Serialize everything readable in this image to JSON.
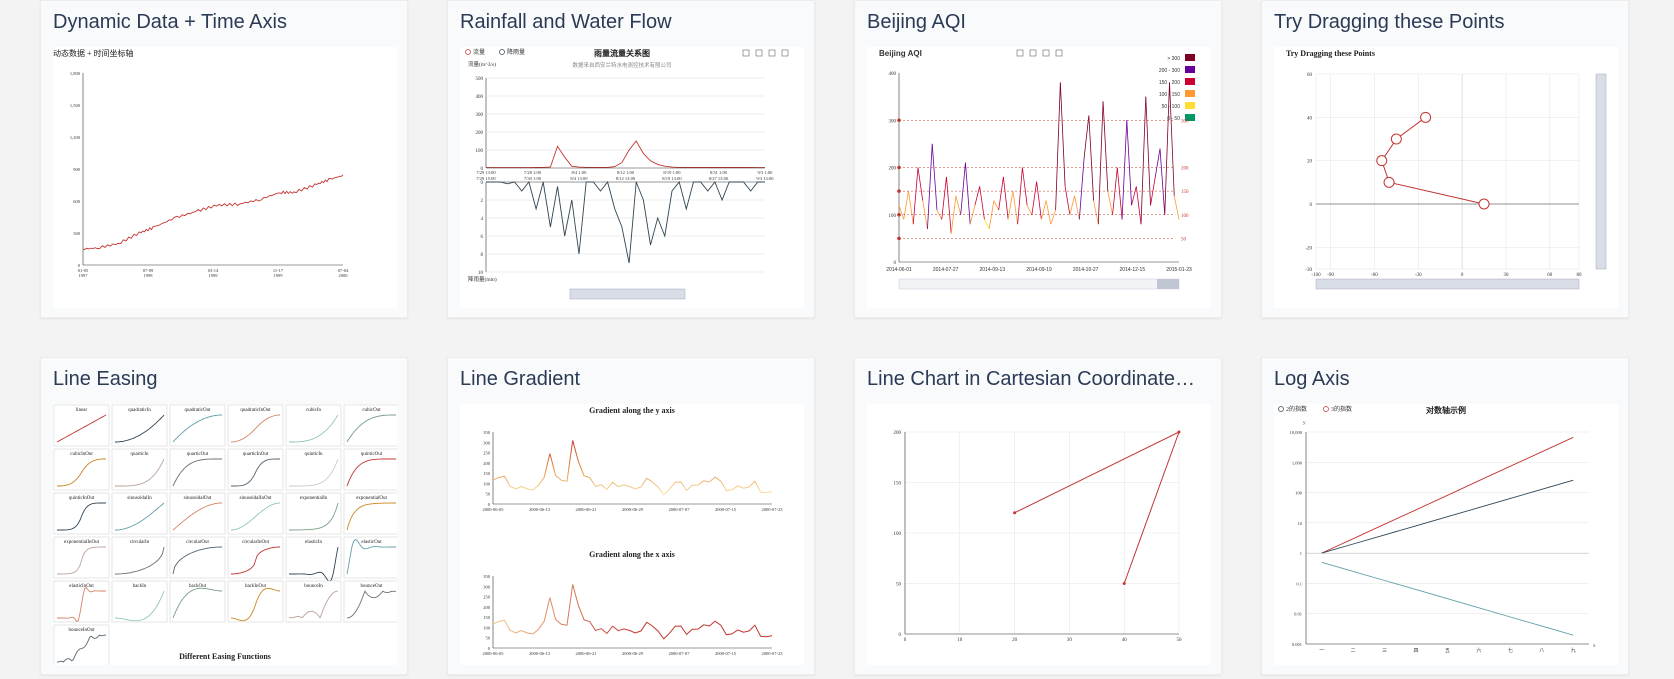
{
  "cards": [
    {
      "title": "Dynamic Data + Time Axis",
      "inner_title": "动态数据 + 时间坐标轴",
      "chart_data": {
        "type": "line",
        "series": [
          {
            "values": [
              [
                1997,
                150
              ],
              [
                1997.2,
                160
              ],
              [
                1997.5,
                200
              ],
              [
                1997.8,
                300
              ],
              [
                1998.0,
                350
              ],
              [
                1998.3,
                440
              ],
              [
                1998.6,
                500
              ],
              [
                1998.9,
                560
              ],
              [
                1999.2,
                570
              ],
              [
                1999.5,
                610
              ],
              [
                1999.8,
                680
              ],
              [
                2000.0,
                680
              ],
              [
                2000.3,
                750
              ],
              [
                2000.5,
                800
              ],
              [
                2000.7,
                840
              ]
            ]
          }
        ],
        "x_ticks": [
          "01-05\n1997",
          "07-09\n1998",
          "03-14\n1999",
          "11-17\n1999",
          "07-04\n2000"
        ],
        "y_ticks": [
          "0",
          "300",
          "600",
          "900",
          "1,200",
          "1,500",
          "1,800"
        ],
        "ylim": [
          0,
          1800
        ]
      }
    },
    {
      "title": "Rainfall and Water Flow",
      "inner_title": "雨量流量关系图",
      "inner_subtitle": "数据来自西安兰特水电测控技术有限公司",
      "legend": [
        "流量",
        "降雨量"
      ],
      "chart_data": {
        "type": "line",
        "series": [
          {
            "name": "流量",
            "values": [
              2,
              2,
              2,
              2,
              2,
              2,
              2,
              3,
              3,
              5,
              120,
              60,
              10,
              5,
              3,
              3,
              3,
              3,
              8,
              30,
              100,
              150,
              80,
              40,
              20,
              10,
              5,
              3,
              3,
              3,
              3,
              3,
              3,
              3,
              3,
              3,
              3,
              3,
              2,
              2
            ]
          },
          {
            "name": "降雨量",
            "values": [
              0,
              0,
              0,
              0.2,
              0,
              1,
              0,
              3,
              0,
              5,
              0.5,
              6,
              2,
              8,
              0,
              0,
              1,
              0,
              3,
              5,
              9,
              0,
              2,
              7,
              4,
              6,
              1,
              0,
              3,
              0,
              0,
              1,
              0,
              2,
              0,
              0,
              0,
              1,
              0,
              0
            ]
          }
        ],
        "y_ticks_top": [
          "0",
          "100",
          "200",
          "300",
          "400",
          "500"
        ],
        "ylim_top": [
          0,
          500
        ],
        "y_ticks_bottom": [
          "0",
          "2",
          "4",
          "6",
          "8",
          "10"
        ],
        "ylim_bottom": [
          0,
          10
        ],
        "x_ticks": [
          "7/29 13:00\n7/29 15:00",
          "7/28 1:00\n7/30 1:00",
          "8/4 1:00\n8/4 13:00",
          "8/12 1:00\n8/12 13:00",
          "8/19 1:00\n8/19 13:00",
          "8/31 1:00\n8/27 13:00",
          "9/3 1:00\n9/3 13:00"
        ],
        "ylabel_top": "流量(m^3/s)",
        "ylabel_bottom": "降雨量(mm)"
      }
    },
    {
      "title": "Beijing AQI",
      "inner_title": "Beijing AQI",
      "visual_map": [
        "> 300",
        "200 - 300",
        "150 - 200",
        "100 - 150",
        "50 - 100",
        "0 - 50"
      ],
      "visual_colors": [
        "#7e0023",
        "#660099",
        "#cc0033",
        "#ff9933",
        "#ffde33",
        "#096"
      ],
      "chart_data": {
        "type": "line",
        "ylim": [
          0,
          400
        ],
        "y_ticks": [
          "0",
          "100",
          "200",
          "300",
          "400"
        ],
        "x_ticks": [
          "2014-06-01",
          "2014-07-27",
          "2014-09-13",
          "2014-09-19",
          "2014-10-27",
          "2014-12-15",
          "2015-01-23"
        ],
        "mark_lines": [
          "50",
          "100",
          "150",
          "200",
          "300"
        ],
        "values": [
          120,
          90,
          150,
          80,
          200,
          130,
          70,
          250,
          110,
          90,
          180,
          60,
          140,
          100,
          210,
          80,
          120,
          160,
          90,
          70,
          130,
          110,
          180,
          90,
          150,
          80,
          200,
          120,
          100,
          170,
          90,
          130,
          80,
          110,
          380,
          160,
          100,
          140,
          90,
          220,
          310,
          130,
          80,
          340,
          150,
          100,
          200,
          90,
          300,
          120,
          160,
          80,
          350,
          120,
          180,
          240,
          100,
          380,
          140,
          90
        ]
      }
    },
    {
      "title": "Try Dragging these Points",
      "inner_title": "Try Dragging these Points",
      "chart_data": {
        "type": "line",
        "xlim": [
          -100,
          80
        ],
        "ylim": [
          -30,
          60
        ],
        "x_ticks": [
          "-100",
          "-90",
          "-60",
          "-30",
          "0",
          "30",
          "60",
          "80"
        ],
        "y_ticks": [
          "-30",
          "-20",
          "0",
          "20",
          "40",
          "60"
        ],
        "values": [
          [
            15,
            0
          ],
          [
            -50,
            10
          ],
          [
            -55,
            20
          ],
          [
            -45,
            30
          ],
          [
            -25,
            40
          ]
        ]
      }
    },
    {
      "title": "Line Easing",
      "inner_title": "Different Easing Functions",
      "easings": [
        "linear",
        "quadraticIn",
        "quadraticOut",
        "quadraticInOut",
        "cubicIn",
        "cubicOut",
        "cubicInOut",
        "quarticIn",
        "quarticOut",
        "quarticInOut",
        "quinticIn",
        "quinticOut",
        "quinticInOut",
        "sinusoidalIn",
        "sinusoidalOut",
        "sinusoidalInOut",
        "exponentialIn",
        "exponentialOut",
        "exponentialInOut",
        "circularIn",
        "circularOut",
        "circularInOut",
        "elasticIn",
        "elasticOut",
        "elasticInOut",
        "backIn",
        "backOut",
        "backInOut",
        "bounceIn",
        "bounceOut",
        "bounceInOut"
      ],
      "easing_colors": [
        "#c23531",
        "#2f4554",
        "#61a0a8",
        "#d48265",
        "#91c7ae",
        "#749f83",
        "#ca8622",
        "#bda29a",
        "#6e7074",
        "#546570",
        "#c4ccd3",
        "#c23531",
        "#2f4554",
        "#61a0a8",
        "#d48265",
        "#91c7ae",
        "#749f83",
        "#ca8622",
        "#bda29a",
        "#6e7074",
        "#546570",
        "#c23531",
        "#2f4554",
        "#61a0a8",
        "#d48265",
        "#91c7ae",
        "#749f83",
        "#ca8622",
        "#bda29a",
        "#6e7074",
        "#546570"
      ]
    },
    {
      "title": "Line Gradient",
      "inner_title_1": "Gradient along the y axis",
      "inner_title_2": "Gradient along the x axis",
      "chart_data": {
        "type": "line",
        "ylim": [
          0,
          350
        ],
        "y_ticks": [
          "0",
          "50",
          "100",
          "150",
          "200",
          "250",
          "300",
          "350"
        ],
        "x_ticks": [
          "2000-06-05",
          "2000-06-13",
          "2000-06-21",
          "2000-06-29",
          "2000-07-07",
          "2000-07-15",
          "2000-07-23"
        ],
        "values": [
          116,
          129,
          135,
          86,
          73,
          85,
          73,
          68,
          92,
          130,
          245,
          139,
          115,
          111,
          309,
          206,
          137,
          128,
          85,
          94,
          71,
          106,
          84,
          93,
          85,
          73,
          83,
          125,
          107,
          82,
          44,
          72,
          106,
          107,
          66,
          91,
          92,
          113,
          107,
          131,
          111,
          64,
          69,
          88,
          77,
          83,
          111,
          57,
          55,
          60
        ]
      }
    },
    {
      "title": "Line Chart in Cartesian Coordinate System",
      "chart_data": {
        "type": "line",
        "xlim": [
          0,
          50
        ],
        "ylim": [
          0,
          200
        ],
        "x_ticks": [
          "0",
          "10",
          "20",
          "30",
          "40",
          "50"
        ],
        "y_ticks": [
          "0",
          "50",
          "100",
          "150",
          "200"
        ],
        "values": [
          [
            20,
            120
          ],
          [
            50,
            200
          ],
          [
            40,
            50
          ]
        ]
      }
    },
    {
      "title": "Log Axis",
      "inner_title": "对数轴示例",
      "legend": [
        "2的指数",
        "3的指数"
      ],
      "chart_data": {
        "type": "line",
        "ylabel": "y",
        "xlabel": "x",
        "x_ticks": [
          "一",
          "二",
          "三",
          "四",
          "五",
          "六",
          "七",
          "八",
          "九"
        ],
        "y_ticks": [
          "0.001",
          "0.01",
          "0.1",
          "1",
          "10",
          "100",
          "1,000",
          "10,000"
        ],
        "series": [
          {
            "name": "3的指数",
            "values": [
              1,
              3,
              9,
              27,
              81,
              247,
              741,
              2223,
              6669
            ]
          },
          {
            "name": "2的指数",
            "values": [
              1,
              2,
              4,
              8,
              16,
              32,
              64,
              128,
              256
            ]
          },
          {
            "values": [
              0.5,
              0.25,
              0.125,
              0.0625,
              0.03125,
              0.015625,
              0.0078125,
              0.00390625,
              0.001953125
            ]
          }
        ]
      }
    }
  ]
}
